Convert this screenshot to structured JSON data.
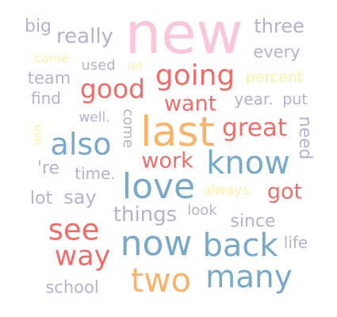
{
  "palette": {
    "pink": "#f9c6dc",
    "orange": "#f9b46a",
    "red": "#f26d6a",
    "blue": "#78a9cb",
    "lavender": "#b4b3cd",
    "lightyellow": "#f9f3a6"
  },
  "words": [
    {
      "id": "new",
      "text": "new",
      "color": "pink"
    },
    {
      "id": "big",
      "text": "big",
      "color": "lavender"
    },
    {
      "id": "really",
      "text": "really",
      "color": "lavender"
    },
    {
      "id": "three",
      "text": "three",
      "color": "lavender"
    },
    {
      "id": "every",
      "text": "every",
      "color": "lavender"
    },
    {
      "id": "came",
      "text": "came",
      "color": "lightyellow"
    },
    {
      "id": "used",
      "text": "used",
      "color": "lavender"
    },
    {
      "id": "let",
      "text": "let",
      "color": "lightyellow"
    },
    {
      "id": "going",
      "text": "going",
      "color": "red"
    },
    {
      "id": "team",
      "text": "team",
      "color": "lavender"
    },
    {
      "id": "good",
      "text": "good",
      "color": "red"
    },
    {
      "id": "percent",
      "text": "percent",
      "color": "lightyellow"
    },
    {
      "id": "find",
      "text": "find",
      "color": "lavender"
    },
    {
      "id": "want",
      "text": "want",
      "color": "red"
    },
    {
      "id": "year",
      "text": "year.",
      "color": "lavender"
    },
    {
      "id": "put",
      "text": "put",
      "color": "lavender"
    },
    {
      "id": "well",
      "text": "well.",
      "color": "lavender"
    },
    {
      "id": "come",
      "text": "come",
      "color": "lavender"
    },
    {
      "id": "need",
      "text": "need",
      "color": "lavender"
    },
    {
      "id": "use",
      "text": "use",
      "color": "lightyellow"
    },
    {
      "id": "last",
      "text": "last",
      "color": "orange"
    },
    {
      "id": "great",
      "text": "great",
      "color": "red"
    },
    {
      "id": "also",
      "text": "also",
      "color": "blue"
    },
    {
      "id": "know",
      "text": "know",
      "color": "blue"
    },
    {
      "id": "work",
      "text": "work",
      "color": "red"
    },
    {
      "id": "re",
      "text": "'re",
      "color": "lavender"
    },
    {
      "id": "time",
      "text": "time.",
      "color": "lavender"
    },
    {
      "id": "love",
      "text": "love",
      "color": "blue"
    },
    {
      "id": "always",
      "text": "always",
      "color": "lightyellow"
    },
    {
      "id": "got",
      "text": "got",
      "color": "red"
    },
    {
      "id": "lot",
      "text": "lot",
      "color": "lavender"
    },
    {
      "id": "say",
      "text": "say",
      "color": "lavender"
    },
    {
      "id": "look",
      "text": "look",
      "color": "lavender"
    },
    {
      "id": "things",
      "text": "things",
      "color": "lavender"
    },
    {
      "id": "since",
      "text": "since",
      "color": "lavender"
    },
    {
      "id": "see",
      "text": "see",
      "color": "red"
    },
    {
      "id": "now",
      "text": "now",
      "color": "blue"
    },
    {
      "id": "back",
      "text": "back",
      "color": "blue"
    },
    {
      "id": "life",
      "text": "life",
      "color": "lavender"
    },
    {
      "id": "way",
      "text": "way",
      "color": "red"
    },
    {
      "id": "two",
      "text": "two",
      "color": "orange"
    },
    {
      "id": "many",
      "text": "many",
      "color": "blue"
    },
    {
      "id": "school",
      "text": "school",
      "color": "lavender"
    }
  ]
}
